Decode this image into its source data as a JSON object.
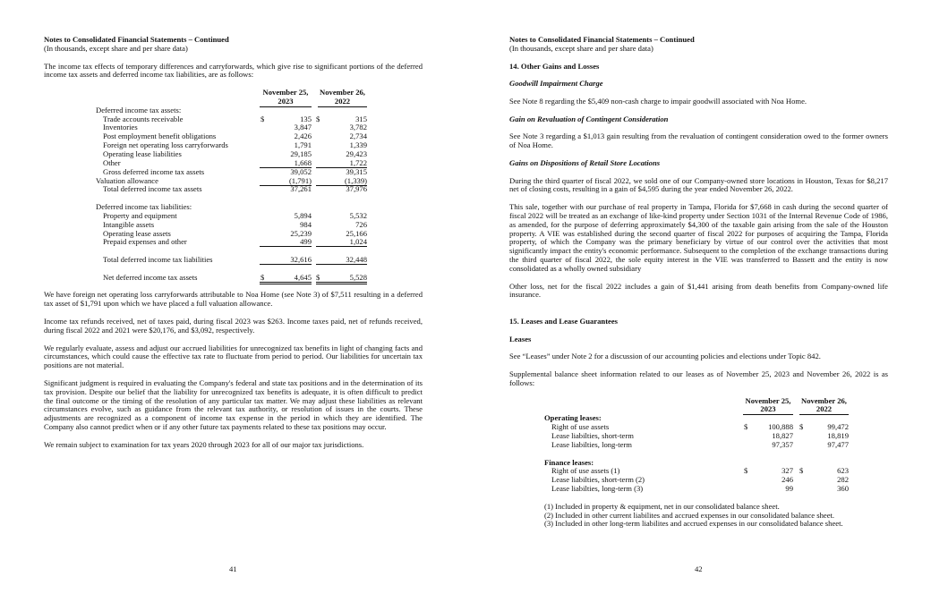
{
  "left": {
    "title": "Notes to Consolidated Financial Statements – Continued",
    "subtitle": "(In thousands, except share and per share data)",
    "intro": "The income tax effects of temporary differences and carryforwards, which give rise to significant portions of the deferred income tax assets and deferred income tax liabilities, are as follows:",
    "table": {
      "col1": [
        "November 25,",
        "2023"
      ],
      "col2": [
        "November 26,",
        "2022"
      ],
      "rows": [
        {
          "label": "Deferred income tax assets:",
          "level": 0
        },
        {
          "label": "Trade accounts receivable",
          "level": 1,
          "c1": "135",
          "c2": "315",
          "dollar": "$"
        },
        {
          "label": "Inventories",
          "level": 1,
          "c1": "3,847",
          "c2": "3,782"
        },
        {
          "label": "Post employment benefit obligations",
          "level": 1,
          "c1": "2,426",
          "c2": "2,734"
        },
        {
          "label": "Foreign net operating loss carryforwards",
          "level": 1,
          "c1": "1,791",
          "c2": "1,339"
        },
        {
          "label": "Operating lease liabilities",
          "level": 1,
          "c1": "29,185",
          "c2": "29,423"
        },
        {
          "label": "Other",
          "level": 1,
          "c1": "1,668",
          "c2": "1,722",
          "rule": "single"
        },
        {
          "label": "Gross deferred income tax assets",
          "level": 1,
          "c1": "39,052",
          "c2": "39,315"
        },
        {
          "label": "Valuation allowance",
          "level": 0,
          "c1": "(1,791)",
          "c2": "(1,339)",
          "rule": "single"
        },
        {
          "label": "Total deferred income tax assets",
          "level": 1,
          "c1": "37,261",
          "c2": "37,976"
        },
        {},
        {
          "label": "Deferred income tax liabilities:",
          "level": 0
        },
        {
          "label": "Property and equipment",
          "level": 1,
          "c1": "5,894",
          "c2": "5,532"
        },
        {
          "label": "Intangible assets",
          "level": 1,
          "c1": "984",
          "c2": "726"
        },
        {
          "label": "Operating lease assets",
          "level": 1,
          "c1": "25,239",
          "c2": "25,166"
        },
        {
          "label": "Prepaid expenses and other",
          "level": 1,
          "c1": "499",
          "c2": "1,024",
          "rule": "single"
        },
        {},
        {
          "label": "Total deferred income tax liabilities",
          "level": 1,
          "c1": "32,616",
          "c2": "32,448",
          "rule": "single"
        },
        {},
        {
          "label": "Net deferred income tax assets",
          "level": 1,
          "c1": "4,645",
          "c2": "5,528",
          "dollar": "$",
          "rule": "double"
        }
      ]
    },
    "paragraphs": [
      "We have foreign net operating loss carryforwards attributable to Noa Home (see Note 3) of $7,511 resulting in a deferred tax asset of $1,791 upon which we have placed a full valuation allowance.",
      "Income tax refunds received, net of taxes paid, during fiscal 2023 was $263. Income taxes paid, net of refunds received, during fiscal 2022 and 2021 were $20,176, and $3,092, respectively.",
      "We regularly evaluate, assess and adjust our accrued liabilities for unrecognized tax benefits in light of changing facts and circumstances, which could cause the effective tax rate to fluctuate from period to period. Our liabilities for uncertain tax positions are not material.",
      "Significant judgment is required in evaluating the Company's federal and state tax positions and in the determination of its tax provision. Despite our belief that the liability for unrecognized tax benefits is adequate, it is often difficult to predict the final outcome or the timing of the resolution of any particular tax matter. We may adjust these liabilities as relevant circumstances evolve, such as guidance from the relevant tax authority, or resolution of issues in the courts. These adjustments are recognized as a component of income tax expense in the period in which they are identified. The Company also cannot predict when or if any other future tax payments related to these tax positions may occur.",
      "We remain subject to examination for tax years 2020 through 2023 for all of our major tax jurisdictions."
    ],
    "page_number": "41"
  },
  "right": {
    "title": "Notes to Consolidated Financial Statements – Continued",
    "subtitle": "(In thousands, except share and per share data)",
    "section14": "14. Other Gains and Losses",
    "goodwill_heading": "Goodwill Impairment Charge",
    "goodwill_text": "See Note 8 regarding the $5,409 non-cash charge to impair goodwill associated with Noa Home.",
    "revaluation_heading": "Gain on Revaluation of Contingent Consideration",
    "revaluation_text": "See Note 3 regarding a $1,013 gain resulting from the revaluation of contingent consideration owed to the former owners of Noa Home.",
    "dispositions_heading": "Gains on Dispositions of Retail Store Locations",
    "dispositions_text1": "During the third quarter of fiscal 2022, we sold one of our Company-owned store locations in Houston, Texas for $8,217 net of closing costs, resulting in a gain of $4,595 during the year ended November 26, 2022.",
    "dispositions_text2": "This sale, together with our purchase of real property in Tampa, Florida for $7,668 in cash during the second quarter of fiscal 2022 will be treated as an exchange of like-kind property under Section 1031 of the Internal Revenue Code of 1986, as amended, for the purpose of deferring approximately $4,300 of the taxable gain arising from the sale of the Houston property. A VIE was established during the second quarter of fiscal 2022 for purposes of acquiring the Tampa, Florida property, of which the Company was the primary beneficiary by virtue of our control over the activities that most significantly impact the entity's economic performance. Subsequent to the completion of the exchange transactions during the third quarter of fiscal 2022, the sole equity interest in the VIE was transferred to Bassett and the entity is now consolidated as a wholly owned subsidiary",
    "other_loss_text": "Other loss, net for the fiscal 2022 includes a gain of $1,441 arising from death benefits from Company-owned life insurance.",
    "section15": "15. Leases and Lease Guarantees",
    "leases_heading": "Leases",
    "leases_text": "See “Leases” under Note 2 for a discussion of our accounting policies and elections under Topic 842.",
    "supplemental_text": "Supplemental balance sheet information related to our leases as of November 25, 2023 and November 26, 2022 is as follows:",
    "table": {
      "col1": [
        "November 25,",
        "2023"
      ],
      "col2": [
        "November 26,",
        "2022"
      ],
      "rows": [
        {
          "label": "Operating leases:",
          "level": 0,
          "bold": true
        },
        {
          "label": "Right of use assets",
          "level": 1,
          "c1": "100,888",
          "c2": "99,472",
          "dollar": "$"
        },
        {
          "label": "Lease liabilties, short-term",
          "level": 1,
          "c1": "18,827",
          "c2": "18,819"
        },
        {
          "label": "Lease liabilties, long-term",
          "level": 1,
          "c1": "97,357",
          "c2": "97,477"
        },
        {},
        {
          "label": "Finance leases:",
          "level": 0,
          "bold": true
        },
        {
          "label": "Right of use assets (1)",
          "level": 1,
          "c1": "327",
          "c2": "623",
          "dollar": "$"
        },
        {
          "label": "Lease liabilties, short-term (2)",
          "level": 1,
          "c1": "246",
          "c2": "282"
        },
        {
          "label": "Lease liabilties, long-term (3)",
          "level": 1,
          "c1": "99",
          "c2": "360"
        }
      ]
    },
    "footnotes": [
      "(1) Included in property & equipment, net in our consolidated balance sheet.",
      "(2) Included in other current liabilites and accrued expenses in our consolidated balance sheet.",
      "(3) Included in other long-term liabilites and accrued expenses in our consolidated balance sheet."
    ],
    "page_number": "42"
  }
}
